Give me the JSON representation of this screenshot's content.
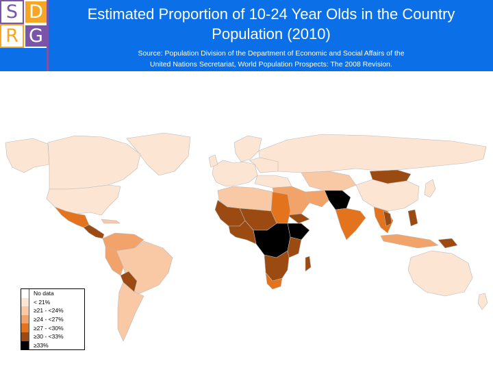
{
  "header": {
    "logo_letters": [
      "S",
      "D",
      "R",
      "G"
    ],
    "title_line1": "Estimated Proportion of 10-24 Year Olds in the Country",
    "title_line2": "Population (2010)",
    "source_line1": "Source: Population Division of the Department of Economic and Social Affairs of the",
    "source_line2": "United Nations Secretariat, World Population Prospects: The 2008 Revision.",
    "bg_color": "#0b6fe8"
  },
  "legend": {
    "items": [
      {
        "label": "No data",
        "color": "#ffffff"
      },
      {
        "label": "< 21%",
        "color": "#fde5d3"
      },
      {
        "label": "≥21 - <24%",
        "color": "#f9c9a6"
      },
      {
        "label": "≥24 - <27%",
        "color": "#f2a36a"
      },
      {
        "label": "≥27 - <30%",
        "color": "#e3731c"
      },
      {
        "label": "≥30 - <33%",
        "color": "#9b4a11"
      },
      {
        "label": "≥33%",
        "color": "#000000"
      }
    ]
  }
}
